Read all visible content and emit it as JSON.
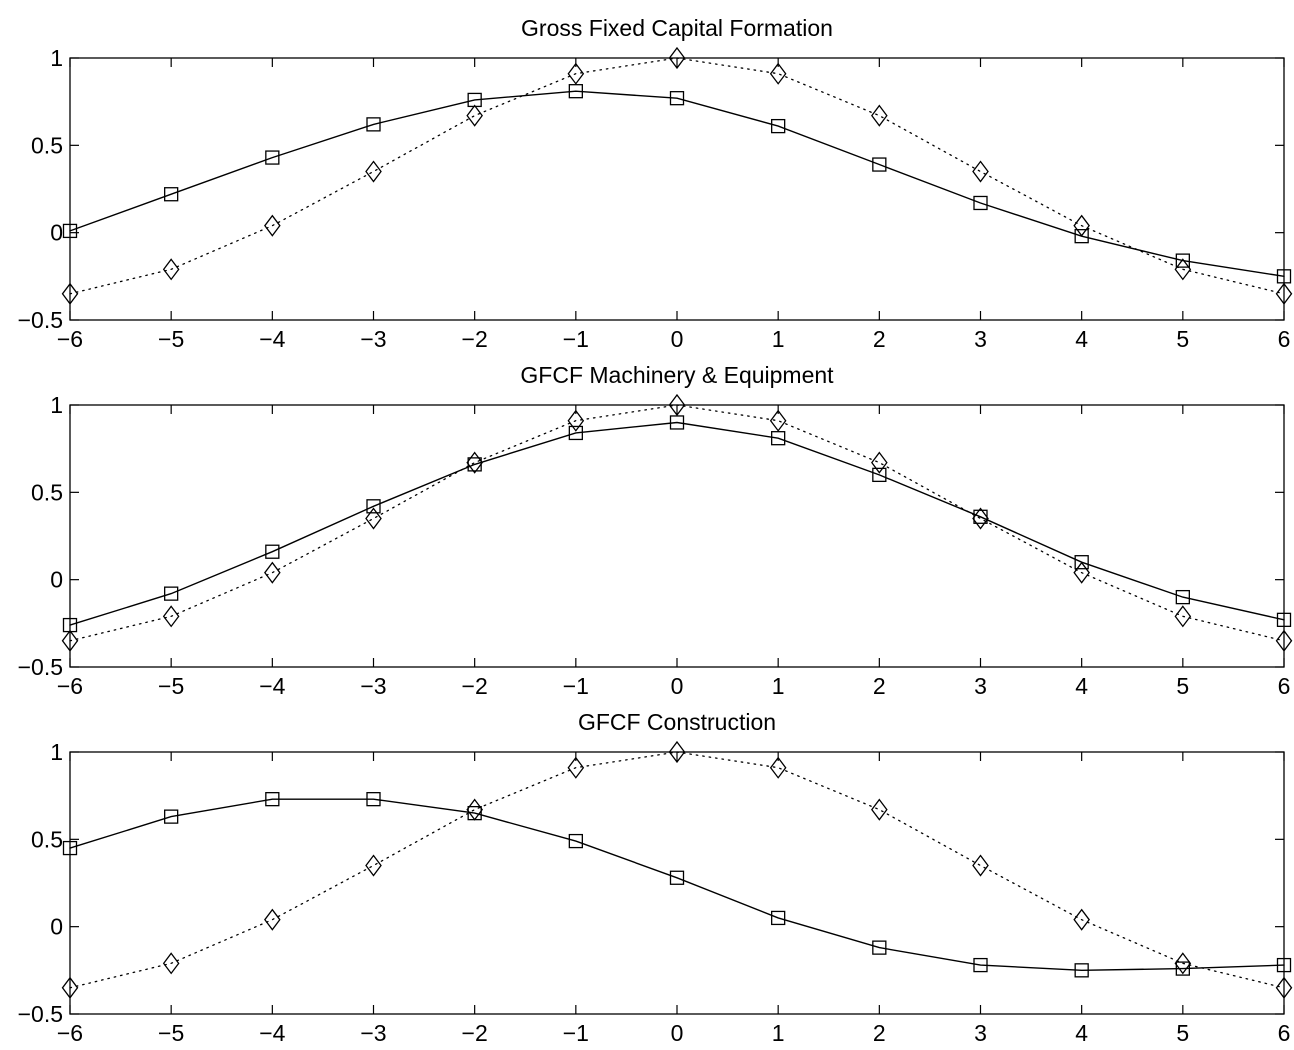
{
  "chart_data": [
    {
      "type": "line",
      "title": "Gross Fixed Capital Formation",
      "xlabel": "",
      "ylabel": "",
      "xlim": [
        -6,
        6
      ],
      "ylim": [
        -0.5,
        1
      ],
      "x": [
        -6,
        -5,
        -4,
        -3,
        -2,
        -1,
        0,
        1,
        2,
        3,
        4,
        5,
        6
      ],
      "xticks": [
        -6,
        -5,
        -4,
        -3,
        -2,
        -1,
        0,
        1,
        2,
        3,
        4,
        5,
        6
      ],
      "yticks": [
        -0.5,
        0,
        0.5,
        1
      ],
      "grid": false,
      "series": [
        {
          "style": "solid",
          "marker": "square",
          "values": [
            0.01,
            0.22,
            0.43,
            0.62,
            0.76,
            0.81,
            0.77,
            0.61,
            0.39,
            0.17,
            -0.02,
            -0.16,
            -0.25
          ]
        },
        {
          "style": "dotted",
          "marker": "diamond",
          "values": [
            -0.35,
            -0.21,
            0.04,
            0.35,
            0.67,
            0.91,
            1.0,
            0.91,
            0.67,
            0.35,
            0.04,
            -0.21,
            -0.35
          ]
        }
      ]
    },
    {
      "type": "line",
      "title": "GFCF Machinery & Equipment",
      "xlabel": "",
      "ylabel": "",
      "xlim": [
        -6,
        6
      ],
      "ylim": [
        -0.5,
        1
      ],
      "x": [
        -6,
        -5,
        -4,
        -3,
        -2,
        -1,
        0,
        1,
        2,
        3,
        4,
        5,
        6
      ],
      "xticks": [
        -6,
        -5,
        -4,
        -3,
        -2,
        -1,
        0,
        1,
        2,
        3,
        4,
        5,
        6
      ],
      "yticks": [
        -0.5,
        0,
        0.5,
        1
      ],
      "grid": false,
      "series": [
        {
          "style": "solid",
          "marker": "square",
          "values": [
            -0.26,
            -0.08,
            0.16,
            0.42,
            0.66,
            0.84,
            0.9,
            0.81,
            0.6,
            0.36,
            0.1,
            -0.1,
            -0.23
          ]
        },
        {
          "style": "dotted",
          "marker": "diamond",
          "values": [
            -0.35,
            -0.21,
            0.04,
            0.35,
            0.67,
            0.91,
            1.0,
            0.91,
            0.67,
            0.35,
            0.04,
            -0.21,
            -0.35
          ]
        }
      ]
    },
    {
      "type": "line",
      "title": "GFCF Construction",
      "xlabel": "",
      "ylabel": "",
      "xlim": [
        -6,
        6
      ],
      "ylim": [
        -0.5,
        1
      ],
      "x": [
        -6,
        -5,
        -4,
        -3,
        -2,
        -1,
        0,
        1,
        2,
        3,
        4,
        5,
        6
      ],
      "xticks": [
        -6,
        -5,
        -4,
        -3,
        -2,
        -1,
        0,
        1,
        2,
        3,
        4,
        5,
        6
      ],
      "yticks": [
        -0.5,
        0,
        0.5,
        1
      ],
      "grid": false,
      "series": [
        {
          "style": "solid",
          "marker": "square",
          "values": [
            0.45,
            0.63,
            0.73,
            0.73,
            0.65,
            0.49,
            0.28,
            0.05,
            -0.12,
            -0.22,
            -0.25,
            -0.24,
            -0.22
          ]
        },
        {
          "style": "dotted",
          "marker": "diamond",
          "values": [
            -0.35,
            -0.21,
            0.04,
            0.35,
            0.67,
            0.91,
            1.0,
            0.91,
            0.67,
            0.35,
            0.04,
            -0.21,
            -0.35
          ]
        }
      ]
    }
  ]
}
